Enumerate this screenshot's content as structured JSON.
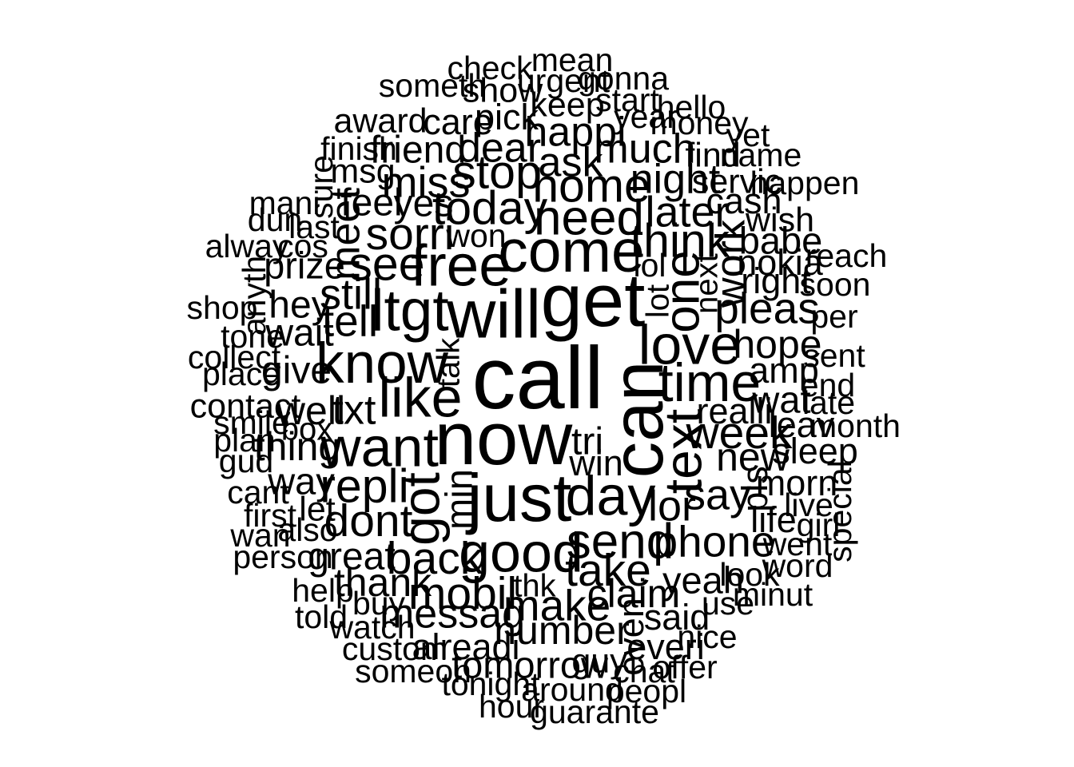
{
  "wordcloud": {
    "text_color": "#000000",
    "background_color": "#ffffff",
    "words": [
      {
        "text": "call",
        "weight": 1.0,
        "rotated": false
      },
      {
        "text": "now",
        "weight": 0.82,
        "rotated": false
      },
      {
        "text": "get",
        "weight": 0.82,
        "rotated": false
      },
      {
        "text": "can",
        "weight": 0.78,
        "rotated": true
      },
      {
        "text": "will",
        "weight": 0.72,
        "rotated": false
      },
      {
        "text": "just",
        "weight": 0.7,
        "rotated": false
      },
      {
        "text": "come",
        "weight": 0.6,
        "rotated": false
      },
      {
        "text": "free",
        "weight": 0.58,
        "rotated": false
      },
      {
        "text": "ltgt",
        "weight": 0.58,
        "rotated": false
      },
      {
        "text": "know",
        "weight": 0.56,
        "rotated": false
      },
      {
        "text": "like",
        "weight": 0.54,
        "rotated": false
      },
      {
        "text": "want",
        "weight": 0.54,
        "rotated": false
      },
      {
        "text": "good",
        "weight": 0.54,
        "rotated": false
      },
      {
        "text": "day",
        "weight": 0.54,
        "rotated": false
      },
      {
        "text": "love",
        "weight": 0.54,
        "rotated": false
      },
      {
        "text": "time",
        "weight": 0.52,
        "rotated": false
      },
      {
        "text": "text",
        "weight": 0.5,
        "rotated": true
      },
      {
        "text": "got",
        "weight": 0.5,
        "rotated": true
      },
      {
        "text": "one",
        "weight": 0.46,
        "rotated": true
      },
      {
        "text": "need",
        "weight": 0.46,
        "rotated": false
      },
      {
        "text": "send",
        "weight": 0.46,
        "rotated": false
      },
      {
        "text": "home",
        "weight": 0.42,
        "rotated": false
      },
      {
        "text": "think",
        "weight": 0.42,
        "rotated": false
      },
      {
        "text": "today",
        "weight": 0.42,
        "rotated": false
      },
      {
        "text": "stop",
        "weight": 0.42,
        "rotated": false
      },
      {
        "text": "sorri",
        "weight": 0.4,
        "rotated": false
      },
      {
        "text": "see",
        "weight": 0.42,
        "rotated": false
      },
      {
        "text": "repli",
        "weight": 0.42,
        "rotated": false
      },
      {
        "text": "back",
        "weight": 0.4,
        "rotated": false
      },
      {
        "text": "take",
        "weight": 0.4,
        "rotated": false
      },
      {
        "text": "week",
        "weight": 0.4,
        "rotated": false
      },
      {
        "text": "mobil",
        "weight": 0.4,
        "rotated": false
      },
      {
        "text": "dont",
        "weight": 0.4,
        "rotated": false
      },
      {
        "text": "make",
        "weight": 0.38,
        "rotated": false
      },
      {
        "text": "phone",
        "weight": 0.38,
        "rotated": false
      },
      {
        "text": "tell",
        "weight": 0.38,
        "rotated": false
      },
      {
        "text": "still",
        "weight": 0.36,
        "rotated": false
      },
      {
        "text": "pleas",
        "weight": 0.38,
        "rotated": false
      },
      {
        "text": "later",
        "weight": 0.36,
        "rotated": false
      },
      {
        "text": "miss",
        "weight": 0.36,
        "rotated": false
      },
      {
        "text": "say",
        "weight": 0.36,
        "rotated": false
      },
      {
        "text": "lor",
        "weight": 0.36,
        "rotated": false
      },
      {
        "text": "work",
        "weight": 0.34,
        "rotated": true
      },
      {
        "text": "meet",
        "weight": 0.34,
        "rotated": true
      },
      {
        "text": "night",
        "weight": 0.34,
        "rotated": false
      },
      {
        "text": "happi",
        "weight": 0.34,
        "rotated": false
      },
      {
        "text": "much",
        "weight": 0.34,
        "rotated": false
      },
      {
        "text": "dear",
        "weight": 0.34,
        "rotated": false
      },
      {
        "text": "ask",
        "weight": 0.34,
        "rotated": false
      },
      {
        "text": "messag",
        "weight": 0.34,
        "rotated": false
      },
      {
        "text": "claim",
        "weight": 0.32,
        "rotated": false
      },
      {
        "text": "hope",
        "weight": 0.32,
        "rotated": false
      },
      {
        "text": "new",
        "weight": 0.32,
        "rotated": false
      },
      {
        "text": "txt",
        "weight": 0.34,
        "rotated": false
      },
      {
        "text": "thank",
        "weight": 0.32,
        "rotated": false
      },
      {
        "text": "number",
        "weight": 0.32,
        "rotated": false
      },
      {
        "text": "well",
        "weight": 0.32,
        "rotated": false
      },
      {
        "text": "thing",
        "weight": 0.32,
        "rotated": false
      },
      {
        "text": "great",
        "weight": 0.3,
        "rotated": false
      },
      {
        "text": "hey",
        "weight": 0.3,
        "rotated": false
      },
      {
        "text": "wait",
        "weight": 0.3,
        "rotated": false
      },
      {
        "text": "give",
        "weight": 0.3,
        "rotated": false
      },
      {
        "text": "tri",
        "weight": 0.3,
        "rotated": false
      },
      {
        "text": "friend",
        "weight": 0.3,
        "rotated": false
      },
      {
        "text": "feel",
        "weight": 0.3,
        "rotated": false
      },
      {
        "text": "yes",
        "weight": 0.3,
        "rotated": false
      },
      {
        "text": "tomorrow",
        "weight": 0.28,
        "rotated": false
      },
      {
        "text": "yeah",
        "weight": 0.28,
        "rotated": false
      },
      {
        "text": "wat",
        "weight": 0.28,
        "rotated": false
      },
      {
        "text": "min",
        "weight": 0.28,
        "rotated": true
      },
      {
        "text": "way",
        "weight": 0.28,
        "rotated": false
      },
      {
        "text": "prize",
        "weight": 0.28,
        "rotated": false
      },
      {
        "text": "babe",
        "weight": 0.28,
        "rotated": false
      },
      {
        "text": "realli",
        "weight": 0.26,
        "rotated": false
      },
      {
        "text": "right",
        "weight": 0.26,
        "rotated": false
      },
      {
        "text": "cash",
        "weight": 0.26,
        "rotated": false
      },
      {
        "text": "said",
        "weight": 0.26,
        "rotated": false
      },
      {
        "text": "alreadi",
        "weight": 0.26,
        "rotated": false
      },
      {
        "text": "everi",
        "weight": 0.26,
        "rotated": false
      },
      {
        "text": "even",
        "weight": 0.26,
        "rotated": true
      },
      {
        "text": "win",
        "weight": 0.26,
        "rotated": false
      },
      {
        "text": "pls",
        "weight": 0.26,
        "rotated": true
      },
      {
        "text": "morn",
        "weight": 0.26,
        "rotated": false
      },
      {
        "text": "life",
        "weight": 0.26,
        "rotated": false
      },
      {
        "text": "leav",
        "weight": 0.26,
        "rotated": false
      },
      {
        "text": "amp",
        "weight": 0.26,
        "rotated": false
      },
      {
        "text": "nokia",
        "weight": 0.26,
        "rotated": false
      },
      {
        "text": "pick",
        "weight": 0.26,
        "rotated": false
      },
      {
        "text": "care",
        "weight": 0.26,
        "rotated": false
      },
      {
        "text": "sleep",
        "weight": 0.26,
        "rotated": false
      },
      {
        "text": "guy",
        "weight": 0.24,
        "rotated": false
      },
      {
        "text": "let",
        "weight": 0.24,
        "rotated": false
      },
      {
        "text": "contact",
        "weight": 0.24,
        "rotated": false
      },
      {
        "text": "msg",
        "weight": 0.24,
        "rotated": false
      },
      {
        "text": "servic",
        "weight": 0.24,
        "rotated": false
      },
      {
        "text": "wish",
        "weight": 0.24,
        "rotated": false
      },
      {
        "text": "find",
        "weight": 0.24,
        "rotated": false
      },
      {
        "text": "keep",
        "weight": 0.24,
        "rotated": false
      },
      {
        "text": "show",
        "weight": 0.24,
        "rotated": false
      },
      {
        "text": "award",
        "weight": 0.24,
        "rotated": false
      },
      {
        "text": "finish",
        "weight": 0.22,
        "rotated": false
      },
      {
        "text": "sure",
        "weight": 0.22,
        "rotated": true
      },
      {
        "text": "year",
        "weight": 0.22,
        "rotated": false
      },
      {
        "text": "start",
        "weight": 0.22,
        "rotated": false
      },
      {
        "text": "urgent",
        "weight": 0.22,
        "rotated": false
      },
      {
        "text": "gonna",
        "weight": 0.22,
        "rotated": false
      },
      {
        "text": "someth",
        "weight": 0.22,
        "rotated": false
      },
      {
        "text": "check",
        "weight": 0.22,
        "rotated": false
      },
      {
        "text": "mean",
        "weight": 0.22,
        "rotated": false
      },
      {
        "text": "hello",
        "weight": 0.22,
        "rotated": false
      },
      {
        "text": "money",
        "weight": 0.22,
        "rotated": false
      },
      {
        "text": "name",
        "weight": 0.22,
        "rotated": false
      },
      {
        "text": "yet",
        "weight": 0.22,
        "rotated": false
      },
      {
        "text": "happen",
        "weight": 0.22,
        "rotated": false
      },
      {
        "text": "reach",
        "weight": 0.22,
        "rotated": false
      },
      {
        "text": "soon",
        "weight": 0.22,
        "rotated": false
      },
      {
        "text": "per",
        "weight": 0.22,
        "rotated": false
      },
      {
        "text": "sent",
        "weight": 0.22,
        "rotated": false
      },
      {
        "text": "end",
        "weight": 0.22,
        "rotated": false
      },
      {
        "text": "late",
        "weight": 0.22,
        "rotated": false
      },
      {
        "text": "month",
        "weight": 0.22,
        "rotated": false
      },
      {
        "text": "special",
        "weight": 0.22,
        "rotated": true
      },
      {
        "text": "live",
        "weight": 0.22,
        "rotated": false
      },
      {
        "text": "girl",
        "weight": 0.22,
        "rotated": false
      },
      {
        "text": "went",
        "weight": 0.22,
        "rotated": false
      },
      {
        "text": "word",
        "weight": 0.22,
        "rotated": false
      },
      {
        "text": "minut",
        "weight": 0.22,
        "rotated": false
      },
      {
        "text": "look",
        "weight": 0.22,
        "rotated": false
      },
      {
        "text": "use",
        "weight": 0.22,
        "rotated": false
      },
      {
        "text": "nice",
        "weight": 0.22,
        "rotated": false
      },
      {
        "text": "offer",
        "weight": 0.22,
        "rotated": false
      },
      {
        "text": "chat",
        "weight": 0.22,
        "rotated": false
      },
      {
        "text": "peopl",
        "weight": 0.22,
        "rotated": false
      },
      {
        "text": "guarante",
        "weight": 0.22,
        "rotated": false
      },
      {
        "text": "around",
        "weight": 0.22,
        "rotated": false
      },
      {
        "text": "hour",
        "weight": 0.22,
        "rotated": false
      },
      {
        "text": "tonight",
        "weight": 0.22,
        "rotated": false
      },
      {
        "text": "someon",
        "weight": 0.22,
        "rotated": false
      },
      {
        "text": "custom",
        "weight": 0.22,
        "rotated": false
      },
      {
        "text": "watch",
        "weight": 0.22,
        "rotated": false
      },
      {
        "text": "buy",
        "weight": 0.22,
        "rotated": false
      },
      {
        "text": "thk",
        "weight": 0.2,
        "rotated": false
      },
      {
        "text": "help",
        "weight": 0.22,
        "rotated": false
      },
      {
        "text": "told",
        "weight": 0.22,
        "rotated": false
      },
      {
        "text": "person",
        "weight": 0.22,
        "rotated": false
      },
      {
        "text": "also",
        "weight": 0.22,
        "rotated": false
      },
      {
        "text": "wan",
        "weight": 0.22,
        "rotated": false
      },
      {
        "text": "first",
        "weight": 0.22,
        "rotated": false
      },
      {
        "text": "cant",
        "weight": 0.22,
        "rotated": false
      },
      {
        "text": "gud",
        "weight": 0.22,
        "rotated": false
      },
      {
        "text": "plan",
        "weight": 0.22,
        "rotated": false
      },
      {
        "text": "box",
        "weight": 0.2,
        "rotated": false
      },
      {
        "text": "smile",
        "weight": 0.22,
        "rotated": false
      },
      {
        "text": "place",
        "weight": 0.22,
        "rotated": false
      },
      {
        "text": "collect",
        "weight": 0.22,
        "rotated": false
      },
      {
        "text": "tone",
        "weight": 0.22,
        "rotated": false
      },
      {
        "text": "shop",
        "weight": 0.22,
        "rotated": false
      },
      {
        "text": "alway",
        "weight": 0.22,
        "rotated": false
      },
      {
        "text": "anyth",
        "weight": 0.22,
        "rotated": true
      },
      {
        "text": "cos",
        "weight": 0.22,
        "rotated": false
      },
      {
        "text": "last",
        "weight": 0.22,
        "rotated": false
      },
      {
        "text": "mani",
        "weight": 0.22,
        "rotated": false
      },
      {
        "text": "dun",
        "weight": 0.22,
        "rotated": false
      },
      {
        "text": "won",
        "weight": 0.22,
        "rotated": false
      },
      {
        "text": "lol",
        "weight": 0.22,
        "rotated": false
      },
      {
        "text": "lot",
        "weight": 0.2,
        "rotated": true
      },
      {
        "text": "next",
        "weight": 0.2,
        "rotated": true
      },
      {
        "text": "talk",
        "weight": 0.2,
        "rotated": true
      }
    ]
  }
}
